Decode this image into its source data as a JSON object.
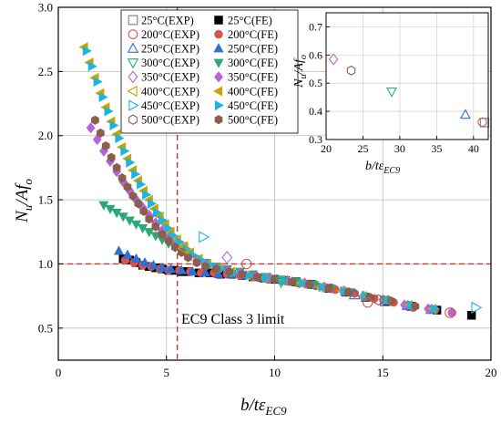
{
  "chart_data": {
    "type": "scatter",
    "xlabel": "b/tε",
    "xlabel_sub": "EC9",
    "ylabel": "N",
    "ylabel_sub": "u",
    "ylabel_rest": "/Af",
    "ylabel_sub2": "o",
    "xlim": [
      0,
      20
    ],
    "ylim": [
      0.25,
      3.0
    ],
    "xticks": [
      "0",
      "5",
      "10",
      "15",
      "20"
    ],
    "yticks": [
      "0.5",
      "1.0",
      "1.5",
      "2.0",
      "2.5",
      "3.0"
    ],
    "grid": true,
    "legend_position": "top-center",
    "reference_lines": [
      {
        "orientation": "vertical",
        "value": 5.5,
        "color": "#c0392b"
      },
      {
        "orientation": "horizontal",
        "value": 1.0,
        "color": "#c0392b"
      }
    ],
    "annotation": "EC9 Class 3 limit",
    "series": [
      {
        "name": "25°C(EXP)",
        "marker": "square",
        "filled": false,
        "color": "#7f7f7f",
        "points": [
          [
            15.1,
            0.71
          ]
        ]
      },
      {
        "name": "200°C(EXP)",
        "marker": "circle",
        "filled": false,
        "color": "#d9534f",
        "points": [
          [
            8.7,
            1.0
          ],
          [
            14.3,
            0.7
          ],
          [
            18.1,
            0.62
          ]
        ]
      },
      {
        "name": "250°C(EXP)",
        "marker": "triangle-up",
        "filled": false,
        "color": "#2e6fd6",
        "points": [
          [
            13.7,
            0.76
          ]
        ]
      },
      {
        "name": "300°C(EXP)",
        "marker": "triangle-down",
        "filled": false,
        "color": "#2aa876",
        "points": [
          [
            10.3,
            0.86
          ]
        ]
      },
      {
        "name": "350°C(EXP)",
        "marker": "diamond",
        "filled": false,
        "color": "#b565d9",
        "points": [
          [
            7.8,
            1.05
          ]
        ]
      },
      {
        "name": "400°C(EXP)",
        "marker": "triangle-left",
        "filled": false,
        "color": "#c9a400",
        "points": [
          [
            5.8,
            1.12
          ]
        ]
      },
      {
        "name": "450°C(EXP)",
        "marker": "triangle-right",
        "filled": false,
        "color": "#1fb4e0",
        "points": [
          [
            6.7,
            1.21
          ],
          [
            19.3,
            0.66
          ]
        ]
      },
      {
        "name": "500°C(EXP)",
        "marker": "hexagon",
        "filled": false,
        "color": "#8b5e4e",
        "points": [
          [
            14.8,
            0.72
          ]
        ]
      },
      {
        "name": "25°C(FE)",
        "marker": "square",
        "filled": true,
        "color": "#000000",
        "points": [
          [
            3.0,
            1.04
          ],
          [
            3.3,
            1.03
          ],
          [
            3.6,
            1.01
          ],
          [
            3.9,
            0.99
          ],
          [
            4.2,
            0.98
          ],
          [
            4.5,
            0.97
          ],
          [
            4.8,
            0.96
          ],
          [
            5.1,
            0.95
          ],
          [
            5.4,
            0.95
          ],
          [
            5.7,
            0.94
          ],
          [
            6.0,
            0.94
          ],
          [
            6.5,
            0.93
          ],
          [
            7.0,
            0.93
          ],
          [
            7.5,
            0.92
          ],
          [
            8.0,
            0.92
          ],
          [
            8.5,
            0.91
          ],
          [
            9.0,
            0.9
          ],
          [
            9.5,
            0.89
          ],
          [
            10.0,
            0.88
          ],
          [
            10.5,
            0.87
          ],
          [
            11.0,
            0.86
          ],
          [
            11.7,
            0.84
          ],
          [
            12.5,
            0.81
          ],
          [
            13.3,
            0.78
          ],
          [
            14.2,
            0.74
          ],
          [
            15.2,
            0.71
          ],
          [
            16.3,
            0.67
          ],
          [
            17.5,
            0.64
          ],
          [
            19.1,
            0.6
          ]
        ]
      },
      {
        "name": "200°C(FE)",
        "marker": "circle",
        "filled": true,
        "color": "#d9534f",
        "points": [
          [
            3.1,
            1.03
          ],
          [
            3.5,
            1.01
          ],
          [
            3.9,
            0.99
          ],
          [
            4.3,
            0.98
          ],
          [
            4.7,
            0.96
          ],
          [
            5.1,
            0.95
          ],
          [
            5.6,
            0.95
          ],
          [
            6.1,
            0.94
          ],
          [
            6.6,
            0.93
          ],
          [
            7.2,
            0.93
          ],
          [
            7.8,
            0.92
          ],
          [
            8.4,
            0.91
          ],
          [
            9.0,
            0.9
          ],
          [
            9.7,
            0.88
          ],
          [
            10.4,
            0.87
          ],
          [
            11.1,
            0.85
          ],
          [
            11.9,
            0.83
          ],
          [
            12.8,
            0.8
          ],
          [
            13.7,
            0.77
          ],
          [
            14.6,
            0.73
          ],
          [
            15.5,
            0.7
          ],
          [
            16.4,
            0.66
          ],
          [
            17.4,
            0.64
          ],
          [
            18.2,
            0.62
          ]
        ]
      },
      {
        "name": "250°C(FE)",
        "marker": "triangle-up",
        "filled": true,
        "color": "#2e6fd6",
        "points": [
          [
            2.8,
            1.1
          ],
          [
            3.2,
            1.07
          ],
          [
            3.6,
            1.04
          ],
          [
            4.0,
            1.01
          ],
          [
            4.4,
            0.99
          ],
          [
            4.8,
            0.97
          ],
          [
            5.2,
            0.96
          ],
          [
            5.7,
            0.95
          ],
          [
            6.2,
            0.94
          ],
          [
            6.8,
            0.93
          ],
          [
            7.4,
            0.92
          ],
          [
            8.0,
            0.92
          ],
          [
            8.7,
            0.91
          ],
          [
            9.4,
            0.89
          ],
          [
            10.1,
            0.88
          ],
          [
            10.8,
            0.86
          ],
          [
            11.6,
            0.84
          ],
          [
            12.4,
            0.81
          ],
          [
            13.3,
            0.78
          ],
          [
            14.2,
            0.74
          ],
          [
            15.1,
            0.71
          ],
          [
            16.1,
            0.67
          ],
          [
            17.2,
            0.64
          ]
        ]
      },
      {
        "name": "300°C(FE)",
        "marker": "triangle-down",
        "filled": true,
        "color": "#2aa876",
        "points": [
          [
            2.1,
            1.46
          ],
          [
            2.4,
            1.43
          ],
          [
            2.7,
            1.4
          ],
          [
            3.0,
            1.37
          ],
          [
            3.3,
            1.34
          ],
          [
            3.6,
            1.31
          ],
          [
            3.9,
            1.28
          ],
          [
            4.2,
            1.25
          ],
          [
            4.5,
            1.22
          ],
          [
            4.8,
            1.19
          ],
          [
            5.1,
            1.16
          ],
          [
            5.4,
            1.13
          ],
          [
            5.7,
            1.1
          ],
          [
            6.0,
            1.07
          ],
          [
            6.4,
            1.04
          ],
          [
            6.8,
            1.01
          ],
          [
            7.3,
            0.98
          ],
          [
            7.8,
            0.96
          ],
          [
            8.4,
            0.94
          ],
          [
            9.0,
            0.92
          ],
          [
            9.6,
            0.9
          ],
          [
            10.3,
            0.88
          ],
          [
            11.0,
            0.86
          ],
          [
            11.8,
            0.84
          ],
          [
            12.6,
            0.81
          ],
          [
            13.5,
            0.78
          ]
        ]
      },
      {
        "name": "350°C(FE)",
        "marker": "diamond",
        "filled": true,
        "color": "#b565d9",
        "points": [
          [
            1.5,
            2.06
          ],
          [
            1.8,
            1.97
          ],
          [
            2.1,
            1.88
          ],
          [
            2.4,
            1.8
          ],
          [
            2.7,
            1.72
          ],
          [
            3.0,
            1.64
          ],
          [
            3.3,
            1.57
          ],
          [
            3.6,
            1.5
          ],
          [
            3.9,
            1.44
          ],
          [
            4.2,
            1.38
          ],
          [
            4.5,
            1.32
          ],
          [
            4.8,
            1.26
          ],
          [
            5.1,
            1.21
          ],
          [
            5.4,
            1.16
          ],
          [
            5.7,
            1.11
          ],
          [
            6.0,
            1.07
          ],
          [
            6.4,
            1.03
          ],
          [
            6.8,
            1.0
          ],
          [
            7.3,
            0.97
          ],
          [
            7.8,
            0.95
          ],
          [
            8.4,
            0.93
          ],
          [
            9.1,
            0.91
          ],
          [
            9.8,
            0.89
          ],
          [
            10.6,
            0.87
          ],
          [
            11.4,
            0.85
          ],
          [
            12.3,
            0.82
          ],
          [
            13.2,
            0.79
          ],
          [
            14.1,
            0.75
          ],
          [
            15.0,
            0.72
          ],
          [
            16.0,
            0.68
          ],
          [
            17.1,
            0.65
          ],
          [
            18.2,
            0.62
          ]
        ]
      },
      {
        "name": "400°C(FE)",
        "marker": "triangle-left",
        "filled": true,
        "color": "#c9a400",
        "points": [
          [
            1.2,
            2.69
          ],
          [
            1.45,
            2.57
          ],
          [
            1.7,
            2.45
          ],
          [
            1.95,
            2.33
          ],
          [
            2.2,
            2.22
          ],
          [
            2.45,
            2.11
          ],
          [
            2.7,
            2.01
          ],
          [
            2.95,
            1.91
          ],
          [
            3.2,
            1.82
          ],
          [
            3.45,
            1.73
          ],
          [
            3.7,
            1.65
          ],
          [
            3.95,
            1.57
          ],
          [
            4.2,
            1.5
          ],
          [
            4.45,
            1.43
          ],
          [
            4.7,
            1.37
          ],
          [
            4.95,
            1.31
          ],
          [
            5.2,
            1.25
          ],
          [
            5.5,
            1.19
          ],
          [
            5.8,
            1.14
          ],
          [
            6.1,
            1.09
          ],
          [
            6.5,
            1.04
          ],
          [
            6.9,
            1.0
          ],
          [
            7.4,
            0.97
          ],
          [
            8.0,
            0.94
          ],
          [
            8.7,
            0.91
          ],
          [
            9.5,
            0.89
          ],
          [
            10.3,
            0.87
          ],
          [
            11.2,
            0.85
          ],
          [
            12.1,
            0.82
          ],
          [
            13.1,
            0.79
          ],
          [
            14.1,
            0.75
          ],
          [
            15.1,
            0.72
          ],
          [
            16.2,
            0.68
          ],
          [
            17.3,
            0.65
          ]
        ]
      },
      {
        "name": "450°C(FE)",
        "marker": "triangle-right",
        "filled": true,
        "color": "#1fb4e0",
        "points": [
          [
            1.3,
            2.66
          ],
          [
            1.55,
            2.54
          ],
          [
            1.8,
            2.42
          ],
          [
            2.05,
            2.3
          ],
          [
            2.3,
            2.19
          ],
          [
            2.55,
            2.08
          ],
          [
            2.8,
            1.98
          ],
          [
            3.05,
            1.88
          ],
          [
            3.3,
            1.79
          ],
          [
            3.55,
            1.7
          ],
          [
            3.8,
            1.62
          ],
          [
            4.05,
            1.54
          ],
          [
            4.3,
            1.47
          ],
          [
            4.55,
            1.4
          ],
          [
            4.8,
            1.34
          ],
          [
            5.05,
            1.28
          ],
          [
            5.3,
            1.22
          ],
          [
            5.6,
            1.17
          ],
          [
            5.9,
            1.12
          ],
          [
            6.2,
            1.07
          ],
          [
            6.6,
            1.03
          ],
          [
            7.0,
            0.99
          ],
          [
            7.5,
            0.96
          ],
          [
            8.1,
            0.93
          ],
          [
            8.8,
            0.91
          ],
          [
            9.6,
            0.89
          ],
          [
            10.4,
            0.87
          ],
          [
            11.3,
            0.85
          ],
          [
            12.2,
            0.82
          ],
          [
            13.2,
            0.79
          ],
          [
            14.2,
            0.75
          ],
          [
            15.2,
            0.72
          ],
          [
            16.3,
            0.68
          ],
          [
            17.4,
            0.65
          ]
        ]
      },
      {
        "name": "500°C(FE)",
        "marker": "hexagon",
        "filled": true,
        "color": "#8b5e4e",
        "points": [
          [
            1.7,
            2.12
          ],
          [
            1.95,
            2.02
          ],
          [
            2.2,
            1.92
          ],
          [
            2.45,
            1.83
          ],
          [
            2.7,
            1.75
          ],
          [
            2.95,
            1.67
          ],
          [
            3.2,
            1.6
          ],
          [
            3.45,
            1.53
          ],
          [
            3.7,
            1.47
          ],
          [
            3.95,
            1.41
          ],
          [
            4.2,
            1.35
          ],
          [
            4.5,
            1.29
          ],
          [
            4.8,
            1.23
          ],
          [
            5.1,
            1.18
          ],
          [
            5.4,
            1.13
          ],
          [
            5.7,
            1.09
          ],
          [
            6.0,
            1.05
          ],
          [
            6.4,
            1.01
          ],
          [
            6.8,
            0.98
          ],
          [
            7.3,
            0.96
          ],
          [
            7.9,
            0.94
          ],
          [
            8.5,
            0.92
          ],
          [
            9.2,
            0.9
          ],
          [
            10.0,
            0.88
          ],
          [
            10.8,
            0.86
          ],
          [
            11.6,
            0.84
          ],
          [
            12.5,
            0.81
          ],
          [
            13.4,
            0.78
          ],
          [
            14.4,
            0.74
          ],
          [
            15.4,
            0.71
          ],
          [
            16.5,
            0.67
          ]
        ]
      }
    ],
    "inset": {
      "xlim": [
        20,
        42
      ],
      "ylim": [
        0.3,
        0.75
      ],
      "xticks": [
        "20",
        "25",
        "30",
        "35",
        "40"
      ],
      "yticks": [
        "0.3",
        "0.4",
        "0.5",
        "0.6",
        "0.7"
      ],
      "xlabel": "b/tε",
      "xlabel_sub": "EC9",
      "ylabel": "N",
      "ylabel_sub": "u",
      "ylabel_rest": "/Af",
      "ylabel_sub2": "o",
      "points": [
        {
          "series": "350°C(EXP)",
          "marker": "diamond",
          "color": "#b565d9",
          "x": 21.0,
          "y": 0.585
        },
        {
          "series": "500°C(EXP)",
          "marker": "hexagon",
          "color": "#8b5e4e",
          "x": 23.4,
          "y": 0.545
        },
        {
          "series": "300°C(EXP)",
          "marker": "triangle-down",
          "color": "#2aa876",
          "x": 28.9,
          "y": 0.47
        },
        {
          "series": "250°C(EXP)",
          "marker": "triangle-up",
          "color": "#2e6fd6",
          "x": 38.9,
          "y": 0.388
        },
        {
          "series": "200°C(EXP)",
          "marker": "circle",
          "color": "#d9534f",
          "x": 41.2,
          "y": 0.362
        },
        {
          "series": "25°C(EXP)",
          "marker": "square",
          "color": "#7f7f7f",
          "x": 41.5,
          "y": 0.36
        }
      ]
    }
  }
}
